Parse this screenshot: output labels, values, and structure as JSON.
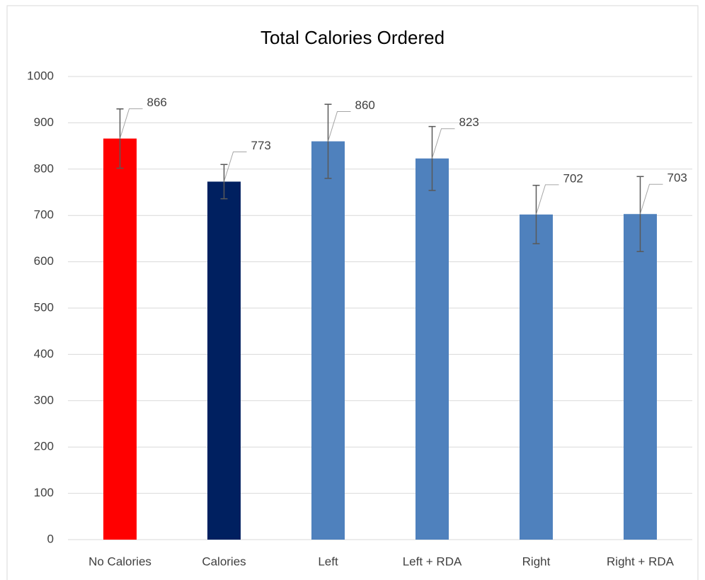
{
  "chart_data": {
    "type": "bar",
    "title": "Total Calories Ordered",
    "categories": [
      "No Calories",
      "Calories",
      "Left",
      "Left + RDA",
      "Right",
      "Right + RDA"
    ],
    "values": [
      866,
      773,
      860,
      823,
      702,
      703
    ],
    "errors": [
      64,
      37,
      80,
      69,
      63,
      81
    ],
    "colors": [
      "#ff0000",
      "#002060",
      "#4f81bd",
      "#4f81bd",
      "#4f81bd",
      "#4f81bd"
    ],
    "ylim": [
      0,
      1000
    ],
    "yticks": [
      0,
      100,
      200,
      300,
      400,
      500,
      600,
      700,
      800,
      900,
      1000
    ],
    "grid": true
  }
}
